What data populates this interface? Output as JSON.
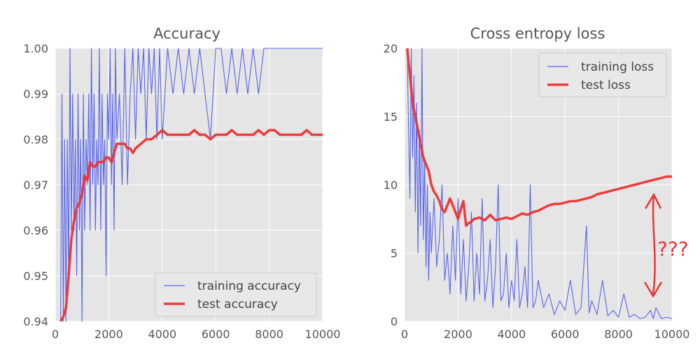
{
  "chart_data": [
    {
      "type": "line",
      "title": "Accuracy",
      "xlabel": "",
      "ylabel": "",
      "xlim": [
        0,
        10000
      ],
      "ylim": [
        0.94,
        1.0
      ],
      "xticks": [
        "0",
        "2000",
        "4000",
        "6000",
        "8000",
        "10000"
      ],
      "yticks": [
        "0.94",
        "0.95",
        "0.96",
        "0.97",
        "0.98",
        "0.99",
        "1.00"
      ],
      "grid": true,
      "legend_position": "bottom-right",
      "series": [
        {
          "name": "training accuracy",
          "color": "#3344ee",
          "style": "thin noisy line",
          "x": [
            200,
            250,
            300,
            350,
            400,
            450,
            500,
            550,
            600,
            650,
            700,
            750,
            800,
            850,
            900,
            950,
            1000,
            1050,
            1100,
            1150,
            1200,
            1250,
            1300,
            1350,
            1400,
            1450,
            1500,
            1550,
            1600,
            1650,
            1700,
            1750,
            1800,
            1850,
            1900,
            1950,
            2000,
            2050,
            2100,
            2150,
            2200,
            2250,
            2300,
            2400,
            2500,
            2600,
            2700,
            2800,
            2900,
            3000,
            3100,
            3200,
            3300,
            3400,
            3500,
            3600,
            3700,
            3800,
            3900,
            4000,
            4200,
            4400,
            4600,
            4800,
            5000,
            5200,
            5400,
            5600,
            5800,
            6000,
            6200,
            6400,
            6600,
            6800,
            7000,
            7200,
            7400,
            7600,
            7800,
            8000,
            8500,
            9000,
            9500,
            10000
          ],
          "values": [
            0.94,
            0.99,
            0.94,
            0.98,
            0.94,
            0.98,
            0.95,
            1.0,
            0.96,
            0.99,
            0.96,
            0.98,
            0.95,
            0.99,
            0.96,
            0.98,
            0.94,
            0.99,
            0.96,
            0.98,
            0.97,
            0.99,
            0.96,
            1.0,
            0.97,
            0.99,
            0.96,
            0.98,
            0.97,
            1.0,
            0.96,
            0.99,
            0.97,
            0.98,
            0.95,
            0.99,
            0.98,
            1.0,
            0.97,
            0.99,
            0.96,
            1.0,
            0.98,
            0.99,
            0.97,
            1.0,
            0.97,
            0.99,
            1.0,
            0.98,
            1.0,
            0.99,
            1.0,
            0.98,
            1.0,
            0.99,
            1.0,
            0.98,
            1.0,
            0.98,
            1.0,
            0.99,
            1.0,
            0.99,
            1.0,
            0.99,
            1.0,
            0.99,
            0.98,
            1.0,
            1.0,
            0.99,
            1.0,
            0.99,
            1.0,
            0.99,
            1.0,
            0.99,
            1.0,
            1.0,
            1.0,
            1.0,
            1.0,
            1.0
          ]
        },
        {
          "name": "test accuracy",
          "color": "#ee3333",
          "style": "thick line",
          "x": [
            200,
            300,
            400,
            500,
            600,
            700,
            800,
            900,
            1000,
            1100,
            1200,
            1300,
            1400,
            1500,
            1600,
            1700,
            1800,
            1900,
            2000,
            2100,
            2200,
            2300,
            2400,
            2500,
            2600,
            2700,
            2800,
            2900,
            3000,
            3200,
            3400,
            3600,
            3800,
            4000,
            4200,
            4400,
            4600,
            4800,
            5000,
            5200,
            5400,
            5600,
            5800,
            6000,
            6200,
            6400,
            6600,
            6800,
            7000,
            7200,
            7400,
            7600,
            7800,
            8000,
            8200,
            8400,
            8600,
            8800,
            9000,
            9200,
            9400,
            9600,
            9800,
            10000
          ],
          "values": [
            0.94,
            0.941,
            0.943,
            0.95,
            0.958,
            0.962,
            0.965,
            0.966,
            0.968,
            0.972,
            0.971,
            0.975,
            0.974,
            0.974,
            0.975,
            0.975,
            0.975,
            0.976,
            0.976,
            0.975,
            0.977,
            0.979,
            0.979,
            0.979,
            0.979,
            0.978,
            0.978,
            0.977,
            0.978,
            0.979,
            0.98,
            0.98,
            0.981,
            0.982,
            0.981,
            0.981,
            0.981,
            0.981,
            0.981,
            0.982,
            0.981,
            0.981,
            0.98,
            0.981,
            0.981,
            0.981,
            0.982,
            0.981,
            0.981,
            0.981,
            0.981,
            0.982,
            0.981,
            0.982,
            0.982,
            0.981,
            0.981,
            0.981,
            0.981,
            0.981,
            0.982,
            0.981,
            0.981,
            0.981
          ]
        }
      ]
    },
    {
      "type": "line",
      "title": "Cross entropy loss",
      "xlabel": "",
      "ylabel": "",
      "xlim": [
        0,
        10000
      ],
      "ylim": [
        0,
        20
      ],
      "xticks": [
        "0",
        "2000",
        "4000",
        "6000",
        "8000",
        "10000"
      ],
      "yticks": [
        "0",
        "5",
        "10",
        "15",
        "20"
      ],
      "grid": true,
      "legend_position": "top-right",
      "annotation": "???",
      "series": [
        {
          "name": "training loss",
          "color": "#3344ee",
          "style": "thin noisy line",
          "x": [
            100,
            150,
            200,
            250,
            300,
            350,
            400,
            450,
            500,
            550,
            600,
            650,
            700,
            750,
            800,
            850,
            900,
            950,
            1000,
            1100,
            1200,
            1300,
            1400,
            1500,
            1600,
            1700,
            1800,
            1900,
            2000,
            2100,
            2200,
            2300,
            2400,
            2500,
            2600,
            2700,
            2800,
            2900,
            3000,
            3100,
            3200,
            3300,
            3400,
            3500,
            3600,
            3700,
            3800,
            3900,
            4000,
            4100,
            4200,
            4300,
            4400,
            4500,
            4600,
            4700,
            4800,
            4900,
            5000,
            5200,
            5400,
            5600,
            5800,
            6000,
            6200,
            6400,
            6600,
            6800,
            6900,
            7000,
            7200,
            7400,
            7600,
            7800,
            8000,
            8200,
            8400,
            8600,
            8800,
            9000,
            9200,
            9300,
            9400,
            9600,
            9800,
            10000
          ],
          "values": [
            20,
            14,
            9,
            20,
            12,
            18,
            8,
            16,
            5,
            14,
            7,
            20,
            6,
            12,
            4,
            10,
            3,
            8,
            5,
            9,
            4,
            6,
            10,
            3,
            5,
            2,
            7,
            3,
            9,
            2,
            6,
            1.5,
            4,
            8,
            1.5,
            5,
            2,
            9,
            1.5,
            3,
            6,
            1,
            4,
            10,
            1.5,
            2,
            5,
            1,
            3,
            1.5,
            6,
            1,
            2,
            4,
            1,
            10,
            1,
            1.5,
            3,
            1,
            2,
            0.5,
            1.5,
            0.8,
            3,
            0.5,
            1,
            7,
            0.6,
            1.5,
            0.5,
            3,
            0.4,
            0.8,
            0.3,
            2,
            0.3,
            0.5,
            0.2,
            0.3,
            0.8,
            0.2,
            1,
            0.2,
            0.3,
            0.2
          ]
        },
        {
          "name": "test loss",
          "color": "#ee3333",
          "style": "thick line",
          "x": [
            100,
            150,
            200,
            300,
            400,
            500,
            600,
            700,
            800,
            900,
            1000,
            1100,
            1200,
            1300,
            1400,
            1500,
            1600,
            1700,
            1800,
            1900,
            2000,
            2100,
            2200,
            2300,
            2400,
            2500,
            2600,
            2800,
            3000,
            3200,
            3400,
            3600,
            3800,
            4000,
            4200,
            4400,
            4600,
            4800,
            5000,
            5200,
            5400,
            5600,
            5800,
            6000,
            6200,
            6400,
            6600,
            6800,
            7000,
            7200,
            7400,
            7600,
            7800,
            8000,
            8200,
            8400,
            8600,
            8800,
            9000,
            9200,
            9400,
            9600,
            9800,
            10000
          ],
          "values": [
            20,
            19,
            18,
            16,
            15,
            14,
            13,
            12,
            11.5,
            11,
            10,
            9.5,
            9.2,
            8.8,
            8.2,
            8.0,
            8.5,
            9.0,
            8.5,
            8.0,
            7.5,
            8.2,
            8.8,
            7.0,
            7.2,
            7.3,
            7.5,
            7.6,
            7.4,
            7.8,
            7.4,
            7.5,
            7.6,
            7.5,
            7.7,
            7.9,
            7.8,
            8.0,
            8.1,
            8.3,
            8.5,
            8.6,
            8.6,
            8.7,
            8.8,
            8.8,
            8.9,
            9.0,
            9.1,
            9.3,
            9.4,
            9.5,
            9.6,
            9.7,
            9.8,
            9.9,
            10.0,
            10.1,
            10.2,
            10.3,
            10.4,
            10.5,
            10.6,
            10.6
          ]
        }
      ]
    }
  ]
}
